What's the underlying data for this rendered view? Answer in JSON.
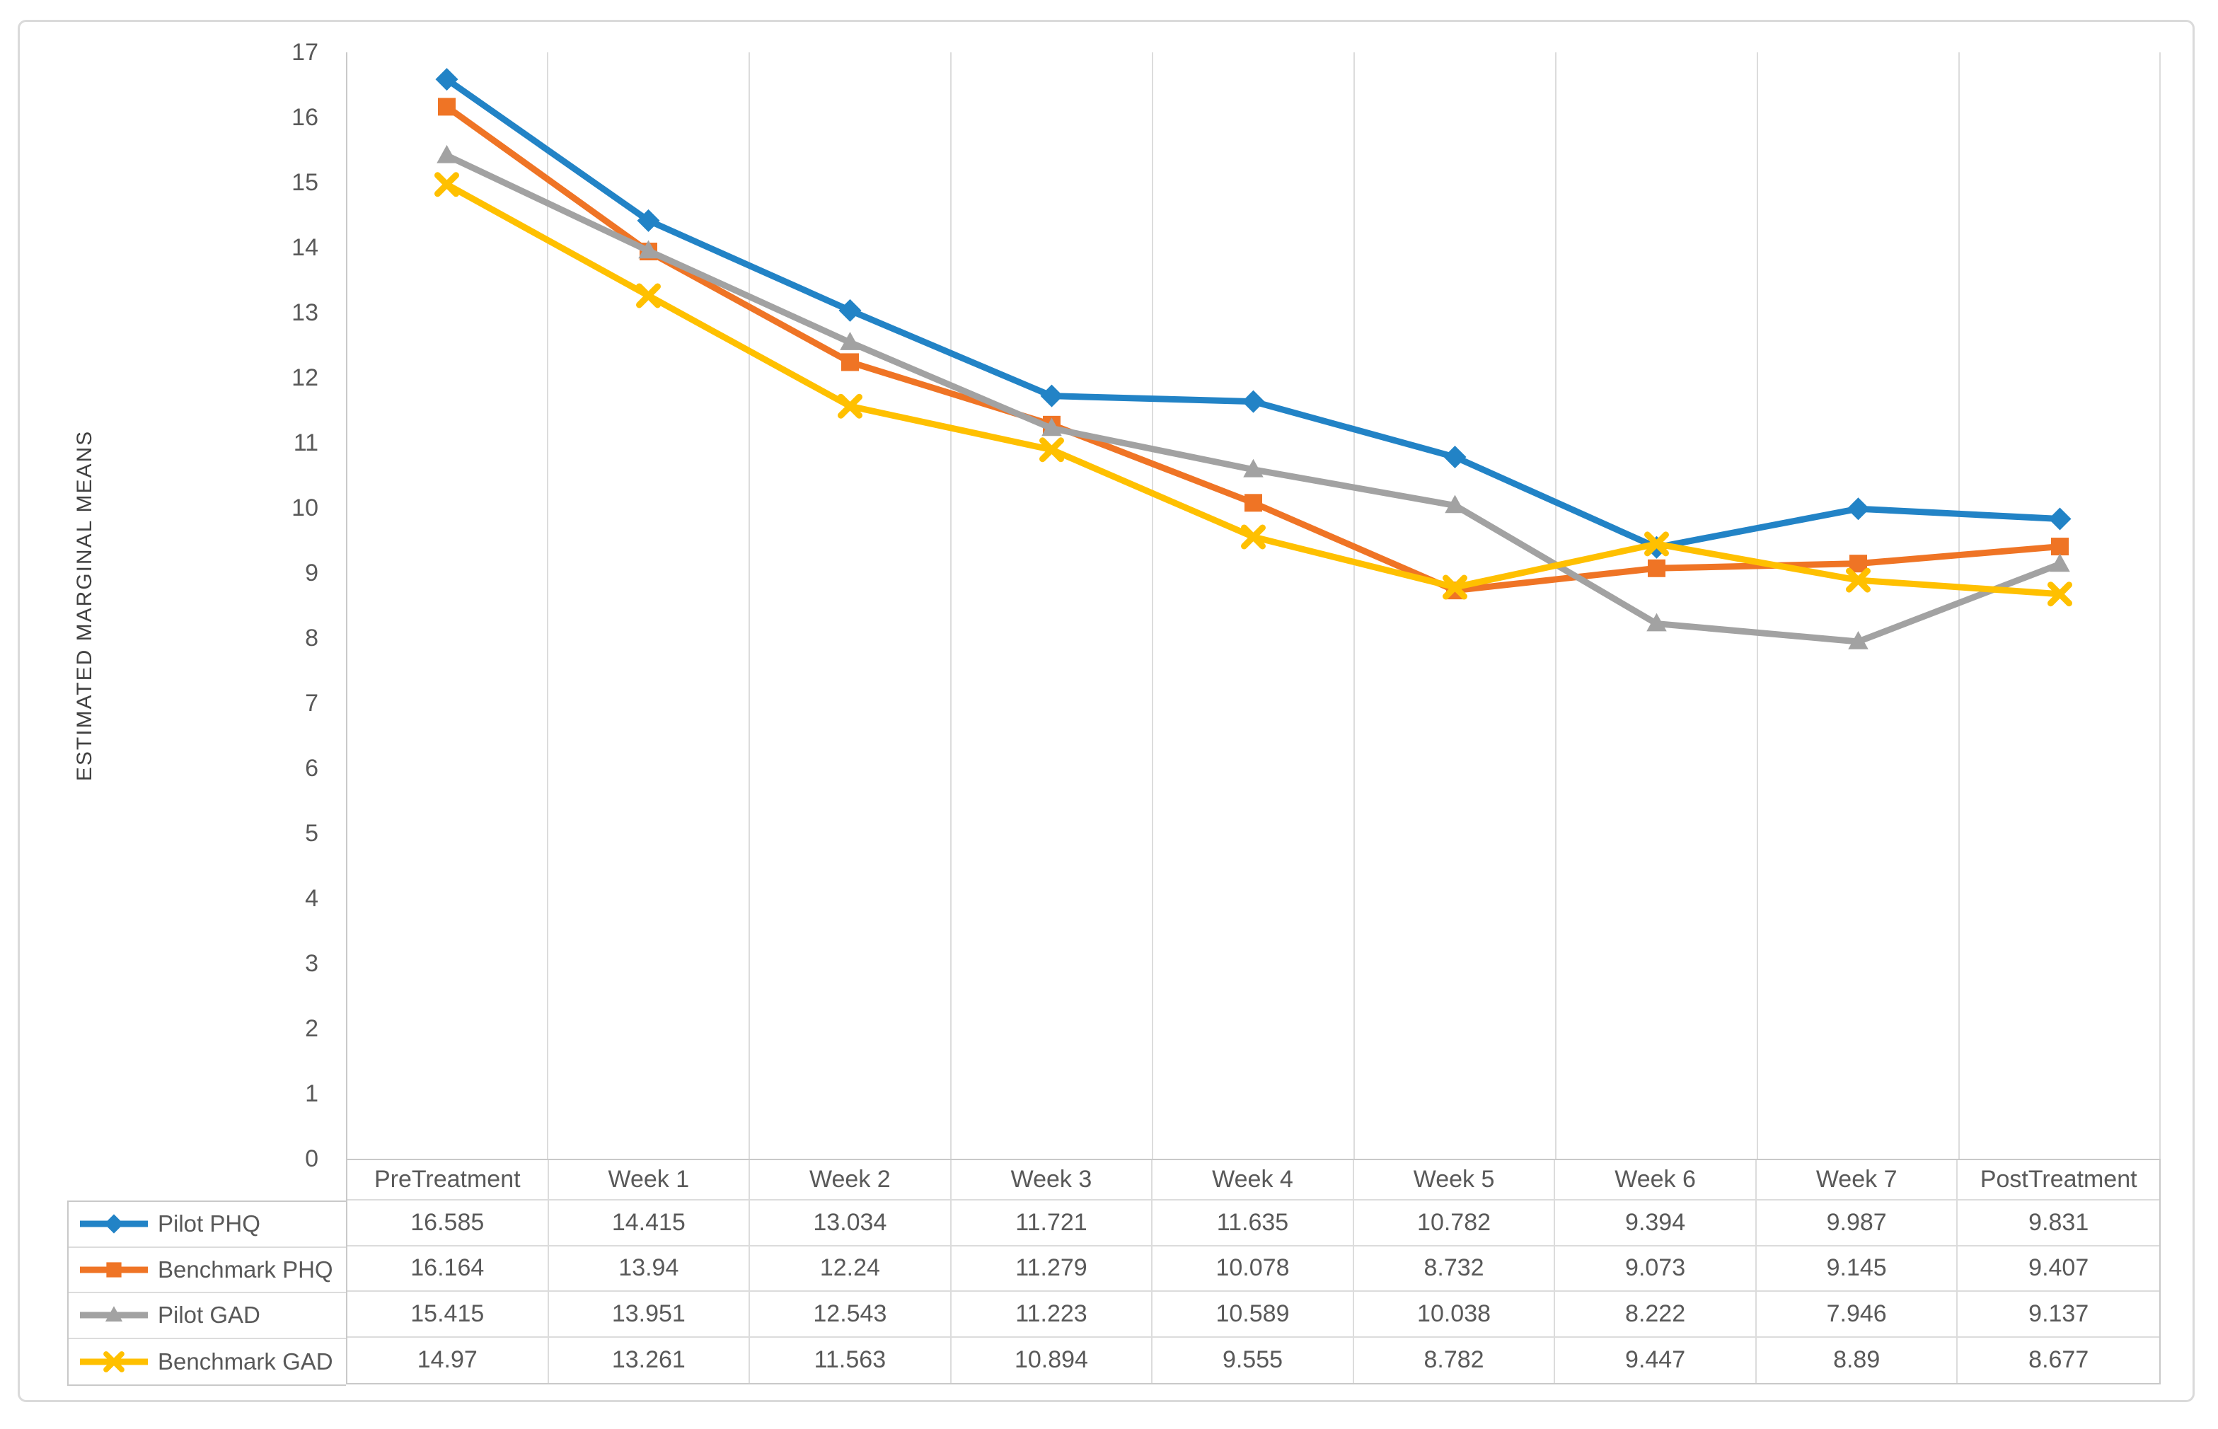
{
  "figure": {
    "background": "#FFFFFF",
    "border_color": "#DADADA"
  },
  "chart_data": {
    "type": "line",
    "title": "",
    "xlabel": "",
    "ylabel": "ESTIMATED MARGINAL MEANS",
    "ylim": [
      0,
      17
    ],
    "yticks": [
      0,
      1,
      2,
      3,
      4,
      5,
      6,
      7,
      8,
      9,
      10,
      11,
      12,
      13,
      14,
      15,
      16,
      17
    ],
    "grid": "vertical-only",
    "gridline_color": "#DCDCDC",
    "axis_line_color": "#C9C9C9",
    "axis_text_color": "#595959",
    "legend_position": "left-column-of-data-table",
    "categories": [
      "PreTreatment",
      "Week 1",
      "Week 2",
      "Week 3",
      "Week 4",
      "Week 5",
      "Week 6",
      "Week 7",
      "PostTreatment"
    ],
    "series": [
      {
        "name": "Pilot PHQ",
        "marker": "diamond",
        "color": "#2283C6",
        "values": [
          16.585,
          14.415,
          13.034,
          11.721,
          11.635,
          10.782,
          9.394,
          9.987,
          9.831
        ]
      },
      {
        "name": "Benchmark PHQ",
        "marker": "square",
        "color": "#EF7425",
        "values": [
          16.164,
          13.94,
          12.24,
          11.279,
          10.078,
          8.732,
          9.073,
          9.145,
          9.407
        ]
      },
      {
        "name": "Pilot GAD",
        "marker": "triangle",
        "color": "#A2A2A2",
        "values": [
          15.415,
          13.951,
          12.543,
          11.223,
          10.589,
          10.038,
          8.222,
          7.946,
          9.137
        ]
      },
      {
        "name": "Benchmark GAD",
        "marker": "x",
        "color": "#FFC000",
        "values": [
          14.97,
          13.261,
          11.563,
          10.894,
          9.555,
          8.782,
          9.447,
          8.89,
          8.677
        ]
      }
    ]
  }
}
